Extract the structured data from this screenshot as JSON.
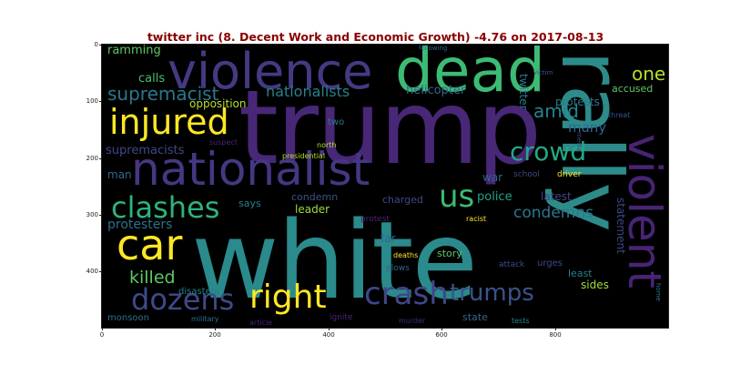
{
  "title": "twitter inc (8. Decent Work and Economic Growth) -4.76 on 2017-08-13",
  "yticks": [
    "0",
    "100",
    "200",
    "300",
    "400"
  ],
  "xticks": [
    "0",
    "200",
    "400",
    "600",
    "800"
  ],
  "words": {
    "white": "white",
    "trump": "trump",
    "rally": "rally",
    "dead": "dead",
    "violence": "violence",
    "nationalist": "nationalist",
    "violent": "violent",
    "car": "car",
    "injured": "injured",
    "right": "right",
    "crash": "crash",
    "dozens": "dozens",
    "clashes": "clashes",
    "trumps": "trumps",
    "crowd": "crowd",
    "us": "us",
    "supremacist": "supremacist",
    "nationalists": "nationalists",
    "killed": "killed",
    "amid": "amid",
    "one": "one",
    "condemns": "condemns",
    "protesters": "protesters",
    "supremacists": "supremacists",
    "many": "many",
    "protests": "protests",
    "police": "police",
    "latest": "latest",
    "helicopter": "helicopter",
    "calls": "calls",
    "ramming": "ramming",
    "opposition": "opposition",
    "twitter": "twitter",
    "leader": "leader",
    "condemn": "condemn",
    "sides": "sides",
    "statement": "statement",
    "charged": "charged",
    "war": "war",
    "man": "man",
    "says": "says",
    "far": "far",
    "accused": "accused",
    "story": "story",
    "least": "least",
    "state": "state",
    "two": "two",
    "school": "school",
    "driver": "driver",
    "urges": "urges",
    "attack": "attack",
    "disasters": "disasters",
    "monsoon": "monsoon",
    "ignite": "ignite",
    "north": "north",
    "presidential": "presidential",
    "suspect": "suspect",
    "threat": "threat",
    "media": "media",
    "racist": "racist",
    "protest": "protest",
    "deaths": "deaths",
    "plows": "plows",
    "military": "military",
    "article": "article",
    "murder": "murder",
    "tests": "tests",
    "home": "home",
    "victim": "victim",
    "following": "following"
  }
}
